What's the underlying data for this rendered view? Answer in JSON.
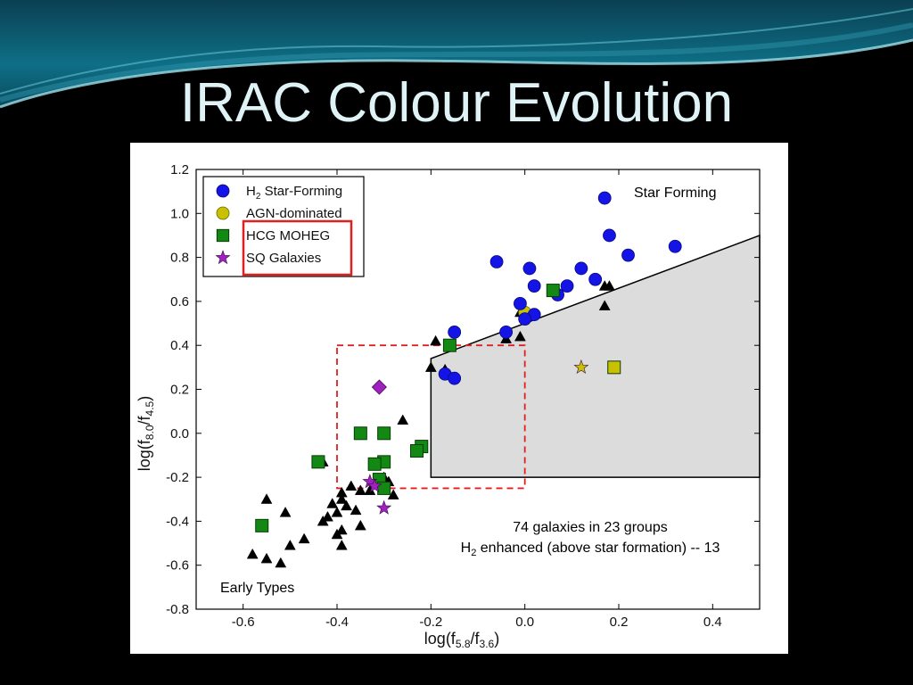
{
  "slide": {
    "title": "IRAC Colour Evolution"
  },
  "colors": {
    "background": "#000000",
    "header_teal": "#0e6f86",
    "title_text": "#dff3f6",
    "h2_star_forming": "#1414e6",
    "agn_dominated": "#c8c000",
    "hcg_moheg": "#138813",
    "sq_galaxies": "#a020c0",
    "early_type": "#000000",
    "wedge_fill": "#dcdcdc",
    "red_box": "#e02020"
  },
  "chart_data": {
    "type": "scatter",
    "xlabel_main": "log(f",
    "xlabel_sub1": "5.8",
    "xlabel_mid": "/f",
    "xlabel_sub2": "3.6",
    "xlabel_end": ")",
    "ylabel_main": "log(f",
    "ylabel_sub1": "8.0",
    "ylabel_mid": "/f",
    "ylabel_sub2": "4.5",
    "ylabel_end": ")",
    "xlim": [
      -0.7,
      0.5
    ],
    "ylim": [
      -0.8,
      1.2
    ],
    "x_ticks": [
      -0.6,
      -0.4,
      -0.2,
      0.0,
      0.2,
      0.4
    ],
    "x_tick_labels": [
      "-0.6",
      "-0.4",
      "-0.2",
      "0.0",
      "0.2",
      "0.4"
    ],
    "y_ticks": [
      1.2,
      1.0,
      0.8,
      0.6,
      0.4,
      0.2,
      0.0,
      -0.2,
      -0.4,
      -0.6,
      -0.8
    ],
    "y_tick_labels": [
      "1.2",
      "1.0",
      "0.8",
      "0.6",
      "0.4",
      "0.2",
      "0.0",
      "-0.2",
      "-0.4",
      "-0.6",
      "-0.8"
    ],
    "grid": false,
    "legend_position": "top-left",
    "legend": [
      {
        "marker": "circle",
        "label_main": "H",
        "label_sub": "2",
        "label_rest": " Star-Forming"
      },
      {
        "marker": "circle",
        "label_main": "AGN-dominated",
        "label_sub": "",
        "label_rest": ""
      },
      {
        "marker": "square",
        "label_main": "HCG MOHEG",
        "label_sub": "",
        "label_rest": ""
      },
      {
        "marker": "star",
        "label_main": "SQ Galaxies",
        "label_sub": "",
        "label_rest": ""
      }
    ],
    "annotations": {
      "star_forming": "Star Forming",
      "early_types": "Early Types",
      "note_line1": "74 galaxies in 23 groups",
      "note_line2_main": "H",
      "note_line2_sub": "2",
      "note_line2_rest": " enhanced (above star formation) -- 13"
    },
    "star_forming_region": [
      [
        -0.2,
        0.34
      ],
      [
        0.5,
        0.9
      ],
      [
        0.5,
        -0.2
      ],
      [
        -0.2,
        -0.2
      ]
    ],
    "dashed_box": {
      "x": [
        -0.4,
        0.0
      ],
      "y": [
        -0.25,
        0.4
      ]
    },
    "series": [
      {
        "name": "H2 Star-Forming",
        "marker": "circle",
        "points": [
          [
            0.17,
            1.07
          ],
          [
            0.18,
            0.9
          ],
          [
            0.32,
            0.85
          ],
          [
            0.22,
            0.81
          ],
          [
            -0.06,
            0.78
          ],
          [
            0.01,
            0.75
          ],
          [
            0.12,
            0.75
          ],
          [
            0.15,
            0.7
          ],
          [
            0.02,
            0.67
          ],
          [
            0.09,
            0.67
          ],
          [
            0.07,
            0.63
          ],
          [
            -0.01,
            0.59
          ],
          [
            0.02,
            0.54
          ],
          [
            0.0,
            0.52
          ],
          [
            -0.04,
            0.46
          ],
          [
            -0.15,
            0.46
          ],
          [
            -0.17,
            0.27
          ],
          [
            -0.15,
            0.25
          ]
        ]
      },
      {
        "name": "AGN-dominated",
        "marker": "circle",
        "points": [
          [
            0.0,
            0.55
          ]
        ]
      },
      {
        "name": "AGN-dominated (non-H2)",
        "marker": "square",
        "points": [
          [
            0.19,
            0.3
          ]
        ]
      },
      {
        "name": "AGN-dominated (SQ)",
        "marker": "star",
        "points": [
          [
            0.12,
            0.3
          ]
        ]
      },
      {
        "name": "HCG MOHEG",
        "marker": "square",
        "points": [
          [
            0.06,
            0.65
          ],
          [
            -0.16,
            0.4
          ],
          [
            -0.35,
            0.0
          ],
          [
            -0.3,
            0.0
          ],
          [
            -0.22,
            -0.06
          ],
          [
            -0.23,
            -0.08
          ],
          [
            -0.44,
            -0.13
          ],
          [
            -0.3,
            -0.13
          ],
          [
            -0.32,
            -0.14
          ],
          [
            -0.31,
            -0.21
          ],
          [
            -0.3,
            -0.25
          ],
          [
            -0.56,
            -0.42
          ]
        ]
      },
      {
        "name": "SQ Galaxies (diamond)",
        "marker": "diamond",
        "points": [
          [
            -0.31,
            0.21
          ]
        ]
      },
      {
        "name": "SQ Galaxies",
        "marker": "star",
        "points": [
          [
            -0.33,
            -0.22
          ],
          [
            -0.32,
            -0.24
          ],
          [
            -0.3,
            -0.34
          ]
        ]
      },
      {
        "name": "Early Types",
        "marker": "triangle",
        "points": [
          [
            0.17,
            0.67
          ],
          [
            0.18,
            0.67
          ],
          [
            0.17,
            0.58
          ],
          [
            -0.01,
            0.55
          ],
          [
            -0.04,
            0.43
          ],
          [
            -0.01,
            0.44
          ],
          [
            -0.19,
            0.42
          ],
          [
            -0.17,
            0.29
          ],
          [
            -0.2,
            0.3
          ],
          [
            -0.26,
            0.06
          ],
          [
            -0.43,
            -0.13
          ],
          [
            -0.3,
            -0.2
          ],
          [
            -0.37,
            -0.24
          ],
          [
            -0.33,
            -0.26
          ],
          [
            -0.35,
            -0.26
          ],
          [
            -0.28,
            -0.28
          ],
          [
            -0.39,
            -0.27
          ],
          [
            -0.39,
            -0.3
          ],
          [
            -0.41,
            -0.32
          ],
          [
            -0.38,
            -0.33
          ],
          [
            -0.36,
            -0.35
          ],
          [
            -0.4,
            -0.36
          ],
          [
            -0.42,
            -0.38
          ],
          [
            -0.43,
            -0.4
          ],
          [
            -0.35,
            -0.42
          ],
          [
            -0.39,
            -0.44
          ],
          [
            -0.4,
            -0.46
          ],
          [
            -0.47,
            -0.48
          ],
          [
            -0.5,
            -0.51
          ],
          [
            -0.39,
            -0.51
          ],
          [
            -0.58,
            -0.55
          ],
          [
            -0.55,
            -0.57
          ],
          [
            -0.52,
            -0.59
          ],
          [
            -0.55,
            -0.3
          ],
          [
            -0.51,
            -0.36
          ],
          [
            -0.29,
            -0.22
          ]
        ]
      }
    ]
  }
}
